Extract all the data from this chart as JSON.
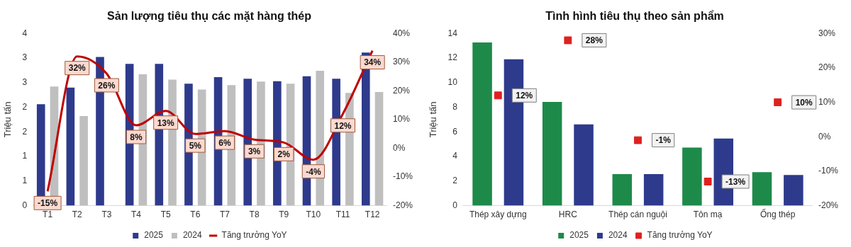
{
  "chart_data": [
    {
      "type": "bar",
      "title": "Sản lượng tiêu thụ các mặt hàng thép",
      "ylabel": "Triệu tấn",
      "categories": [
        "T1",
        "T2",
        "T3",
        "T4",
        "T5",
        "T6",
        "T7",
        "T8",
        "T9",
        "T10",
        "T11",
        "T12"
      ],
      "series": [
        {
          "name": "2025",
          "color": "#2e3a8c",
          "values": [
            2.06,
            2.4,
            3.02,
            2.88,
            2.88,
            2.48,
            2.61,
            2.58,
            2.53,
            2.63,
            2.58,
            3.11
          ]
        },
        {
          "name": "2024",
          "color": "#bfbfbf",
          "values": [
            2.42,
            1.82,
            null,
            2.67,
            2.56,
            2.36,
            2.45,
            2.52,
            2.48,
            2.74,
            2.29,
            2.31
          ]
        },
        {
          "name": "Tăng trưởng YoY",
          "type": "line",
          "axis": "y2",
          "color": "#c00000",
          "values": [
            -15,
            32,
            26,
            8,
            13,
            5,
            6,
            3,
            2,
            -4,
            12,
            34
          ],
          "value_labels": [
            "-15%",
            "32%",
            "26%",
            "8%",
            "13%",
            "5%",
            "6%",
            "3%",
            "2%",
            "-4%",
            "12%",
            "34%"
          ]
        }
      ],
      "ylim": [
        0,
        3.5
      ],
      "yticks": [
        0,
        {
          "value": 0.5,
          "label": "1"
        },
        1,
        {
          "value": 1.5,
          "label": "2"
        },
        2,
        {
          "value": 2.5,
          "label": "3"
        },
        3,
        {
          "value": 3.5,
          "label": "4"
        }
      ],
      "y2lim": [
        -20,
        40
      ],
      "y2ticks": [
        {
          "value": -20,
          "label": "-20%"
        },
        {
          "value": -10,
          "label": "-10%"
        },
        {
          "value": 0,
          "label": "0%"
        },
        {
          "value": 10,
          "label": "10%"
        },
        {
          "value": 20,
          "label": "20%"
        },
        {
          "value": 30,
          "label": "30%"
        },
        {
          "value": 40,
          "label": "40%"
        }
      ],
      "grid": false,
      "legend": "bottom"
    },
    {
      "type": "bar",
      "title": "Tình hình tiêu thụ theo sản phẩm",
      "ylabel": "Triệu tấn",
      "categories": [
        "Thép xây dựng",
        "HRC",
        "Thép cán nguội",
        "Tôn mạ",
        "Ống thép"
      ],
      "series": [
        {
          "name": "2025",
          "color": "#1e8a4a",
          "values": [
            13.27,
            8.43,
            2.56,
            4.72,
            2.72
          ]
        },
        {
          "name": "2024",
          "color": "#2e3a8c",
          "values": [
            11.9,
            6.6,
            2.56,
            5.46,
            2.49
          ]
        },
        {
          "name": "Tăng trưởng YoY",
          "type": "scatter",
          "axis": "y2",
          "color": "#e02020",
          "values": [
            12,
            28,
            -1,
            -13,
            10
          ],
          "value_labels": [
            "12%",
            "28%",
            "-1%",
            "-13%",
            "10%"
          ]
        }
      ],
      "ylim": [
        0,
        14
      ],
      "yticks": [
        0,
        2,
        4,
        6,
        8,
        10,
        12,
        14
      ],
      "y2lim": [
        -20,
        30
      ],
      "y2ticks": [
        {
          "value": -20,
          "label": "-20%"
        },
        {
          "value": -10,
          "label": "-10%"
        },
        {
          "value": 0,
          "label": "0%"
        },
        {
          "value": 10,
          "label": "10%"
        },
        {
          "value": 20,
          "label": "20%"
        },
        {
          "value": 30,
          "label": "30%"
        }
      ],
      "grid": false,
      "legend": "bottom",
      "marker": "square"
    }
  ]
}
